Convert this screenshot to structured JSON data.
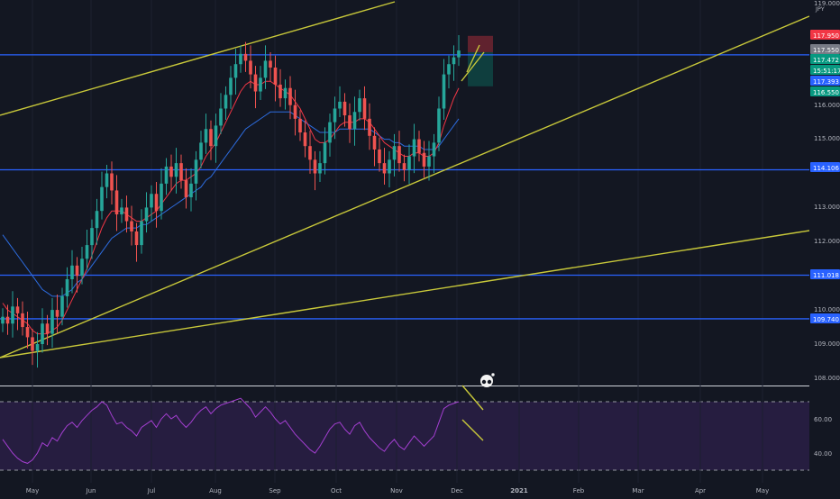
{
  "app": {
    "currency": "JPY"
  },
  "colors": {
    "background": "#131722",
    "up": "#26a69a",
    "down": "#ef5350",
    "hline": "#2962ff",
    "trend": "#c8c83a",
    "ema_fast": "#f23645",
    "ema_slow": "#2d6cdf",
    "rsi": "#a43fd1",
    "rsi_band": "#2a1f45"
  },
  "chart_data": [
    {
      "type": "candlestick",
      "title": "",
      "ylim": [
        107.9,
        119.0
      ],
      "x_ticks": [
        "May",
        "Jun",
        "Jul",
        "Aug",
        "Sep",
        "Oct",
        "Nov",
        "Dec",
        "2021",
        "Feb",
        "Mar",
        "Apr",
        "May"
      ],
      "y_ticks": [
        "119.000",
        "116.000",
        "115.000",
        "113.000",
        "112.000",
        "110.000",
        "109.000",
        "108.000"
      ],
      "price_labels": [
        {
          "text": "117.950",
          "kind": "stop"
        },
        {
          "text": "117.550",
          "kind": "last"
        },
        {
          "text": "117.472",
          "kind": "up"
        },
        {
          "text": "15:51:17",
          "kind": "up"
        },
        {
          "text": "117.393",
          "kind": "line"
        },
        {
          "text": "116.550",
          "kind": "target"
        },
        {
          "text": "114.106",
          "kind": "line"
        },
        {
          "text": "111.018",
          "kind": "line"
        },
        {
          "text": "109.740",
          "kind": "line"
        }
      ],
      "horizontal_levels": [
        117.473,
        114.106,
        111.018,
        109.74
      ],
      "position": {
        "stop": 117.95,
        "entry": 117.55,
        "target": 116.55
      },
      "closes": [
        109.8,
        109.6,
        110.1,
        109.9,
        109.5,
        109.2,
        108.8,
        109.0,
        109.6,
        109.3,
        110.0,
        109.8,
        110.4,
        110.9,
        111.3,
        111.0,
        111.5,
        111.9,
        112.4,
        112.9,
        113.6,
        114.0,
        113.5,
        112.8,
        113.0,
        112.6,
        112.3,
        111.9,
        112.6,
        113.0,
        113.4,
        112.9,
        113.7,
        114.2,
        113.9,
        114.3,
        113.8,
        113.3,
        113.7,
        114.4,
        114.9,
        115.3,
        114.8,
        115.4,
        115.9,
        116.3,
        116.8,
        117.2,
        117.5,
        117.3,
        116.9,
        116.4,
        116.8,
        117.3,
        117.1,
        116.6,
        116.2,
        116.5,
        116.0,
        115.6,
        115.2,
        114.8,
        114.4,
        114.0,
        114.3,
        114.9,
        115.5,
        115.9,
        116.1,
        115.7,
        115.3,
        115.8,
        116.2,
        115.6,
        115.1,
        114.7,
        114.3,
        114.0,
        114.4,
        114.8,
        114.3,
        114.1,
        114.5,
        115.0,
        114.6,
        114.2,
        114.5,
        114.9,
        115.9,
        116.9,
        117.2,
        117.4,
        117.6
      ],
      "ema_fast": [
        110.2,
        110.0,
        109.9,
        109.8,
        109.7,
        109.6,
        109.4,
        109.3,
        109.3,
        109.3,
        109.4,
        109.5,
        109.7,
        110.0,
        110.3,
        110.6,
        110.9,
        111.2,
        111.6,
        112.0,
        112.4,
        112.7,
        112.9,
        112.9,
        112.9,
        112.8,
        112.7,
        112.6,
        112.6,
        112.7,
        112.8,
        112.9,
        113.1,
        113.3,
        113.5,
        113.7,
        113.8,
        113.8,
        113.9,
        114.0,
        114.2,
        114.5,
        114.7,
        114.9,
        115.2,
        115.5,
        115.8,
        116.1,
        116.4,
        116.6,
        116.7,
        116.6,
        116.6,
        116.7,
        116.7,
        116.6,
        116.5,
        116.4,
        116.3,
        116.1,
        115.9,
        115.6,
        115.3,
        115.0,
        114.9,
        114.9,
        115.0,
        115.2,
        115.4,
        115.5,
        115.5,
        115.5,
        115.6,
        115.6,
        115.5,
        115.3,
        115.1,
        114.9,
        114.8,
        114.7,
        114.6,
        114.5,
        114.5,
        114.6,
        114.6,
        114.5,
        114.5,
        114.6,
        114.9,
        115.4,
        115.8,
        116.2,
        116.5
      ],
      "ema_slow": [
        112.2,
        112.0,
        111.8,
        111.6,
        111.4,
        111.2,
        111.0,
        110.8,
        110.6,
        110.5,
        110.4,
        110.4,
        110.4,
        110.5,
        110.6,
        110.8,
        110.9,
        111.1,
        111.3,
        111.5,
        111.7,
        111.9,
        112.1,
        112.2,
        112.3,
        112.4,
        112.4,
        112.4,
        112.5,
        112.5,
        112.6,
        112.7,
        112.8,
        112.9,
        113.0,
        113.1,
        113.2,
        113.3,
        113.4,
        113.5,
        113.6,
        113.8,
        113.9,
        114.1,
        114.3,
        114.5,
        114.7,
        114.9,
        115.1,
        115.3,
        115.4,
        115.5,
        115.6,
        115.7,
        115.8,
        115.8,
        115.8,
        115.8,
        115.8,
        115.7,
        115.6,
        115.5,
        115.4,
        115.3,
        115.2,
        115.2,
        115.2,
        115.2,
        115.3,
        115.3,
        115.3,
        115.3,
        115.3,
        115.3,
        115.3,
        115.2,
        115.1,
        115.0,
        115.0,
        114.9,
        114.9,
        114.8,
        114.8,
        114.8,
        114.8,
        114.7,
        114.7,
        114.7,
        114.8,
        115.0,
        115.2,
        115.4,
        115.6
      ]
    },
    {
      "type": "line",
      "title": "",
      "ylim": [
        30,
        75
      ],
      "y_ticks": [
        "60.00",
        "40.00"
      ],
      "levels": [
        70,
        30
      ],
      "values": [
        48,
        44,
        40,
        37,
        35,
        34,
        36,
        40,
        46,
        44,
        49,
        47,
        52,
        56,
        58,
        55,
        59,
        62,
        65,
        67,
        70,
        68,
        62,
        57,
        58,
        55,
        53,
        50,
        55,
        57,
        59,
        55,
        60,
        63,
        60,
        62,
        58,
        55,
        58,
        62,
        65,
        67,
        63,
        66,
        68,
        69,
        70,
        71,
        72,
        69,
        66,
        61,
        64,
        67,
        64,
        60,
        57,
        59,
        55,
        51,
        48,
        45,
        42,
        40,
        44,
        49,
        54,
        57,
        58,
        54,
        51,
        56,
        58,
        53,
        49,
        46,
        43,
        41,
        45,
        48,
        44,
        42,
        46,
        50,
        47,
        44,
        47,
        50,
        58,
        66,
        68,
        69,
        70
      ]
    }
  ]
}
